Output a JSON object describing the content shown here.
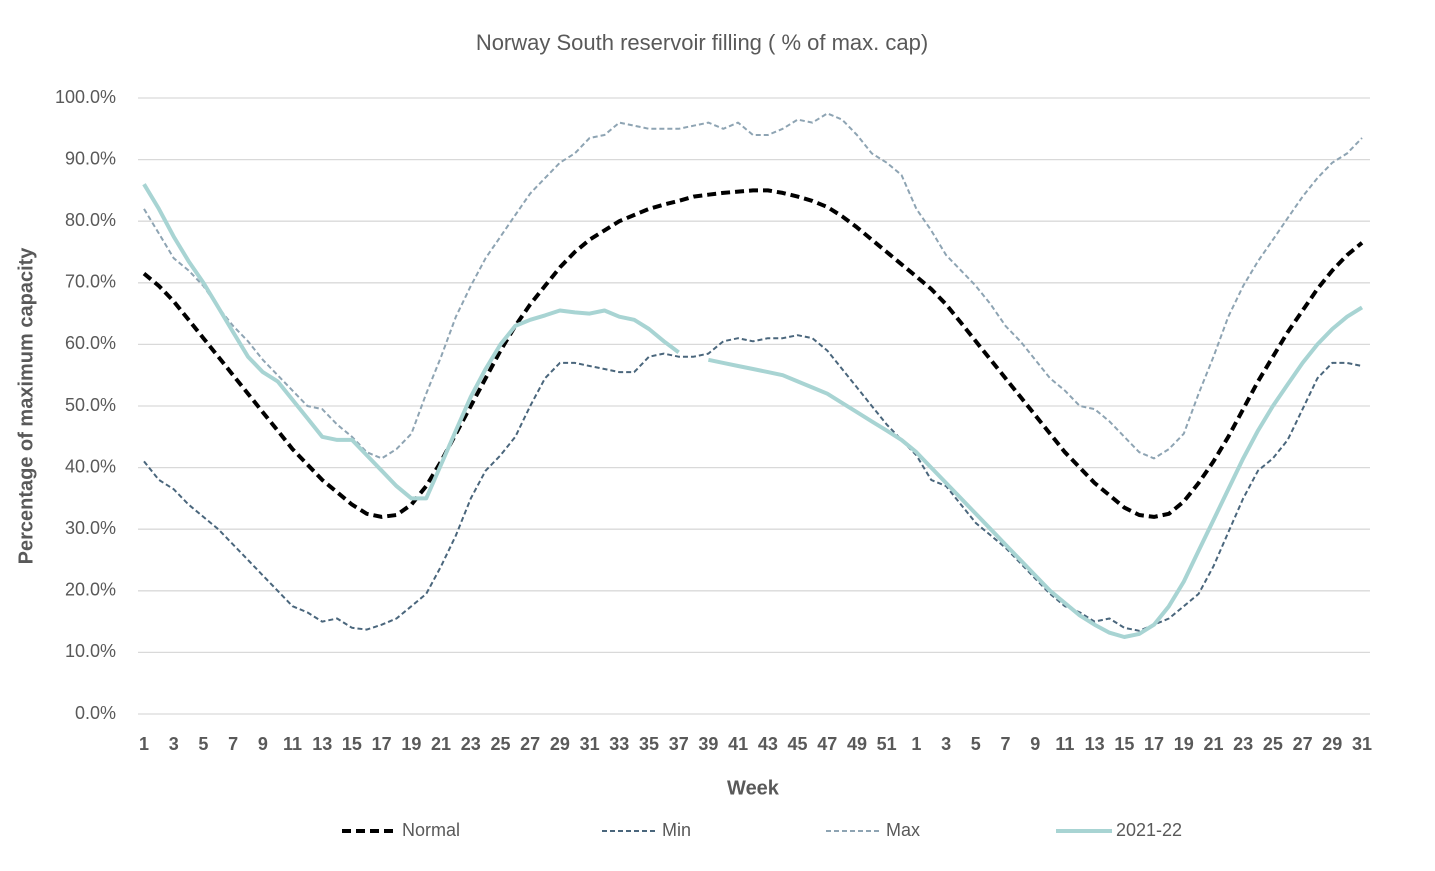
{
  "chart_data": {
    "type": "line",
    "title": "Norway South reservoir filling ( % of max. cap)",
    "x_label": "Week",
    "y_label": "Percentage of maximum capacity",
    "categories": [
      "1",
      null,
      "3",
      null,
      "5",
      null,
      "7",
      null,
      "9",
      null,
      "11",
      null,
      "13",
      null,
      "15",
      null,
      "17",
      null,
      "19",
      null,
      "21",
      null,
      "23",
      null,
      "25",
      null,
      "27",
      null,
      "29",
      null,
      "31",
      null,
      "33",
      null,
      "35",
      null,
      "37",
      null,
      "39",
      null,
      "41",
      null,
      "43",
      null,
      "45",
      null,
      "47",
      null,
      "49",
      null,
      "51",
      null,
      "1",
      null,
      "3",
      null,
      "5",
      null,
      "7",
      null,
      "9",
      null,
      "11",
      null,
      "13",
      null,
      "15",
      null,
      "17",
      null,
      "19",
      null,
      "21",
      null,
      "23",
      null,
      "25",
      null,
      "27",
      null,
      "29",
      null,
      "31"
    ],
    "ylim": [
      0,
      100
    ],
    "yticks": [
      {
        "value": 0,
        "label": "0.0%"
      },
      {
        "value": 10,
        "label": "10.0%"
      },
      {
        "value": 20,
        "label": "20.0%"
      },
      {
        "value": 30,
        "label": "30.0%"
      },
      {
        "value": 40,
        "label": "40.0%"
      },
      {
        "value": 50,
        "label": "50.0%"
      },
      {
        "value": 60,
        "label": "60.0%"
      },
      {
        "value": 70,
        "label": "70.0%"
      },
      {
        "value": 80,
        "label": "80.0%"
      },
      {
        "value": 90,
        "label": "90.0%"
      },
      {
        "value": 100,
        "label": "100.0%"
      }
    ],
    "grid": true,
    "legend": "bottom",
    "series": [
      {
        "name": "Normal",
        "color": "#000000",
        "style": "dashed-bold",
        "values": [
          71.5,
          69.5,
          67,
          64,
          61,
          58,
          55,
          52,
          49,
          46,
          43,
          40.5,
          38,
          36,
          34,
          32.5,
          32,
          32.3,
          34,
          37,
          41,
          45.5,
          50,
          54.5,
          59,
          63,
          66.5,
          69.5,
          72.5,
          75,
          77,
          78.5,
          80,
          81,
          82,
          82.7,
          83.3,
          84,
          84.3,
          84.6,
          84.8,
          85,
          85,
          84.6,
          84,
          83.3,
          82.3,
          80.8,
          79,
          77,
          75,
          73,
          71,
          69,
          66.5,
          63.5,
          60.5,
          57.5,
          54.5,
          51.5,
          48.5,
          45.5,
          42.5,
          40,
          37.5,
          35.5,
          33.5,
          32.3,
          32,
          32.5,
          34.5,
          37.5,
          41,
          45,
          49.5,
          54,
          58,
          62,
          65.5,
          69,
          72,
          74.5,
          76.5
        ]
      },
      {
        "name": "Min",
        "color": "#4a667c",
        "style": "dashed",
        "values": [
          41,
          38,
          36.5,
          34,
          32,
          30,
          27.5,
          25,
          22.5,
          20,
          17.5,
          16.5,
          15,
          15.5,
          14,
          13.7,
          14.5,
          15.5,
          17.5,
          19.5,
          24,
          29,
          35,
          39.5,
          42,
          45,
          50,
          54.5,
          57,
          57,
          56.5,
          56,
          55.5,
          55.5,
          58,
          58.5,
          58,
          58,
          58.5,
          60.5,
          61,
          60.5,
          61,
          61,
          61.5,
          61,
          59,
          56,
          53,
          50,
          47,
          44.5,
          42,
          38,
          37,
          34,
          31,
          29,
          27,
          24.5,
          22,
          19.5,
          17.5,
          16.5,
          15,
          15.5,
          14,
          13.5,
          14.5,
          15.5,
          17.5,
          19.5,
          24,
          29.5,
          35,
          39.5,
          41.5,
          44.5,
          49.5,
          54.5,
          57,
          57,
          56.5
        ]
      },
      {
        "name": "Max",
        "color": "#8ea4b3",
        "style": "dashed",
        "values": [
          82,
          78,
          74,
          72,
          69.5,
          66,
          63,
          60.5,
          57.5,
          55,
          52.5,
          50,
          49.5,
          47,
          45,
          42.5,
          41.5,
          43,
          45.5,
          52,
          58,
          64.5,
          69.5,
          74,
          77.5,
          81,
          84.5,
          87,
          89.5,
          91,
          93.5,
          94,
          96,
          95.5,
          95,
          95,
          95,
          95.5,
          96,
          95,
          96,
          94,
          94,
          95,
          96.5,
          96,
          97.5,
          96.5,
          94,
          91,
          89.5,
          87.5,
          82,
          78.5,
          74.5,
          72,
          69.5,
          66.5,
          63,
          60.5,
          57.5,
          54.5,
          52.5,
          50,
          49.5,
          47.5,
          45,
          42.5,
          41.5,
          43,
          45.5,
          52,
          58,
          64.5,
          69.5,
          73.5,
          77,
          80.5,
          84,
          87,
          89.5,
          91,
          93.5
        ]
      },
      {
        "name": "2021-22",
        "color": "#a8d4d3",
        "style": "solid",
        "values": [
          86,
          82,
          77.5,
          73.5,
          70,
          66,
          62,
          58,
          55.5,
          54,
          51,
          48,
          45,
          44.5,
          44.5,
          42,
          39.5,
          37,
          35,
          35,
          40.5,
          46,
          51.5,
          56,
          60,
          63,
          64,
          64.7,
          65.5,
          65.2,
          65,
          65.5,
          64.5,
          64,
          62.5,
          60.5,
          58.7,
          null,
          57.5,
          57,
          56.5,
          56,
          55.5,
          55,
          54,
          53,
          52,
          50.5,
          49,
          47.5,
          46,
          44.5,
          42.5,
          40,
          37.5,
          35,
          32.5,
          30,
          27.5,
          25,
          22.5,
          20,
          18,
          16,
          14.5,
          13.2,
          12.5,
          13,
          14.5,
          17.5,
          21.5,
          26.5,
          31.5,
          36.5,
          41.5,
          46,
          50,
          53.5,
          57,
          60,
          62.5,
          64.5,
          66
        ]
      }
    ]
  }
}
